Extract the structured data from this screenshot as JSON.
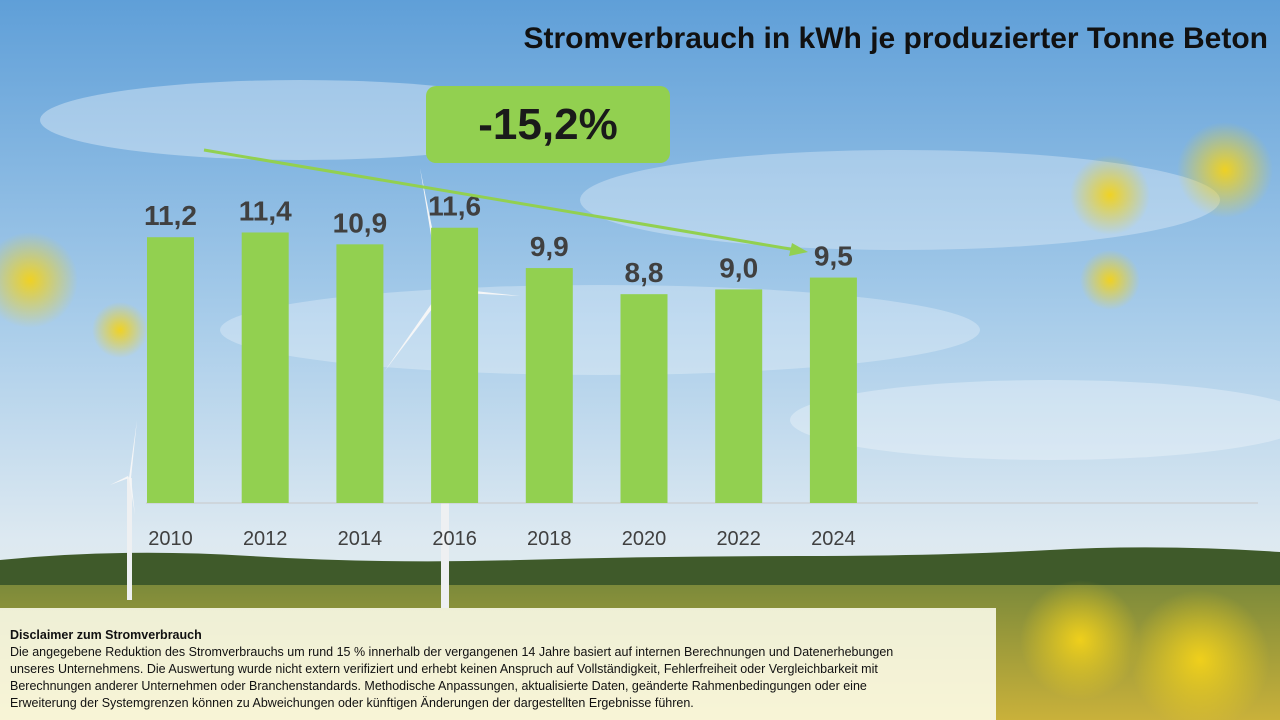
{
  "title": "Stromverbrauch in kWh je produzierter Tonne Beton",
  "badge": "-15,2%",
  "chart_data": {
    "type": "bar",
    "categories": [
      "2010",
      "2012",
      "2014",
      "2016",
      "2018",
      "2020",
      "2022",
      "2024"
    ],
    "values": [
      11.2,
      11.4,
      10.9,
      11.6,
      9.9,
      8.8,
      9.0,
      9.5
    ],
    "data_labels": [
      "11,2",
      "11,4",
      "10,9",
      "11,6",
      "9,9",
      "8,8",
      "9,0",
      "9,5"
    ],
    "ylim": [
      0,
      12.6
    ],
    "bar_color": "#92d050",
    "trend_arrow": "downward",
    "grid": false
  },
  "disclaimer": {
    "heading": "Disclaimer zum Stromverbrauch",
    "lines": [
      "Die angegebene Reduktion des Stromverbrauchs um rund 15 % innerhalb der vergangenen 14 Jahre basiert auf internen Berechnungen und Datenerhebungen",
      "unseres Unternehmens. Die Auswertung wurde nicht extern verifiziert und erhebt keinen Anspruch auf Vollständigkeit, Fehlerfreiheit oder Vergleichbarkeit mit",
      "Berechnungen anderer Unternehmen oder Branchenstandards. Methodische Anpassungen, aktualisierte Daten, geänderte Rahmenbedingungen oder eine",
      "Erweiterung der Systemgrenzen können zu Abweichungen oder künftigen Änderungen der dargestellten Ergebnisse führen."
    ]
  }
}
